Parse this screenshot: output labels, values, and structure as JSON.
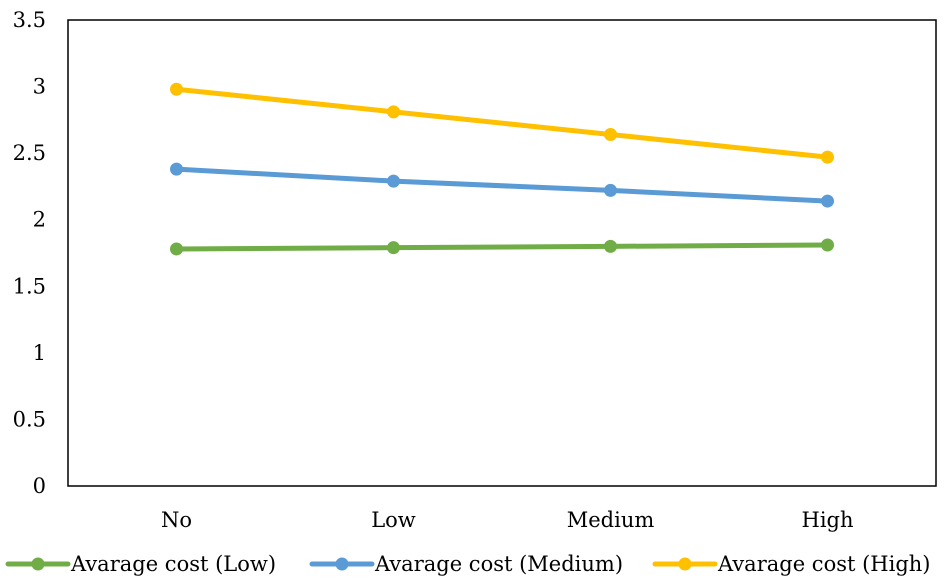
{
  "chart_data": {
    "type": "line",
    "title": "",
    "xlabel": "",
    "ylabel": "",
    "categories": [
      "No",
      "Low",
      "Medium",
      "High"
    ],
    "ylim": [
      0,
      3.5
    ],
    "yticks": [
      "0",
      "0.5",
      "1",
      "1.5",
      "2",
      "2.5",
      "3",
      "3.5"
    ],
    "grid": false,
    "legend_position": "bottom",
    "series": [
      {
        "name": "Avarage cost (Low)",
        "color": "#70AD47",
        "values": [
          1.78,
          1.79,
          1.8,
          1.81
        ]
      },
      {
        "name": "Avarage cost (Medium)",
        "color": "#5B9BD5",
        "values": [
          2.38,
          2.29,
          2.22,
          2.14
        ]
      },
      {
        "name": "Avarage cost (High)",
        "color": "#FFC000",
        "values": [
          2.98,
          2.81,
          2.64,
          2.47
        ]
      }
    ]
  }
}
